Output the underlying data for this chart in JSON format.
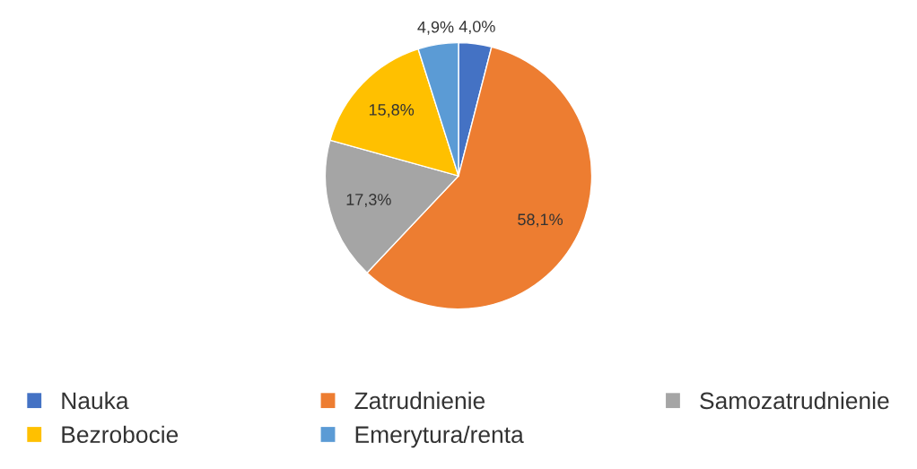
{
  "chart_data": {
    "type": "pie",
    "categories": [
      "Nauka",
      "Zatrudnienie",
      "Samozatrudnienie",
      "Bezrobocie",
      "Emerytura/renta"
    ],
    "values": [
      4.0,
      58.1,
      17.3,
      15.8,
      4.9
    ],
    "value_labels": [
      "4,0%",
      "58,1%",
      "17,3%",
      "15,8%",
      "4,9%"
    ],
    "colors": [
      "#4472c4",
      "#ed7d31",
      "#a5a5a5",
      "#ffc000",
      "#5b9bd5"
    ],
    "legend": "bottom"
  }
}
